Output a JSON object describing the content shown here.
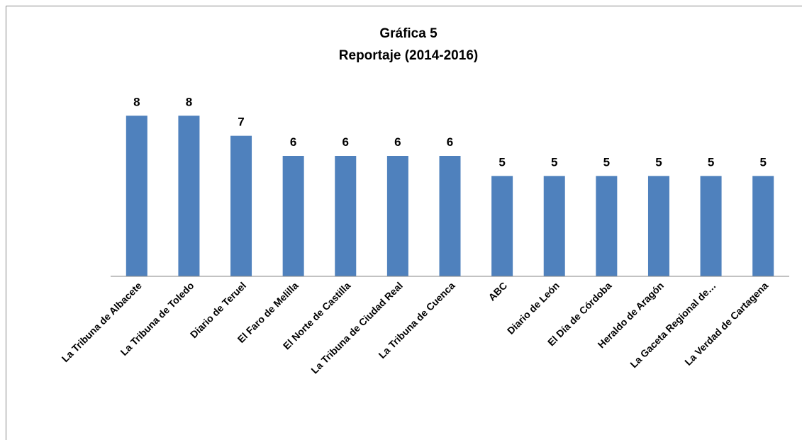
{
  "chart_data": {
    "type": "bar",
    "title": [
      "Gráfica 5",
      "Reportaje (2014-2016)"
    ],
    "categories": [
      "La Tribuna de Albacete",
      "La Tribuna de Toledo",
      "Diario de Teruel",
      "El Faro de Melilla",
      "El Norte de Castilla",
      "La Tribuna de Ciudad Real",
      "La Tribuna de Cuenca",
      "ABC",
      "Diario de León",
      "El Día de Córdoba",
      "Heraldo de Aragón",
      "La Gaceta Regional de…",
      "La Verdad de Cartagena"
    ],
    "values": [
      8,
      8,
      7,
      6,
      6,
      6,
      6,
      5,
      5,
      5,
      5,
      5,
      5
    ],
    "color": "#4f81bd",
    "ylim": [
      0,
      9
    ]
  }
}
